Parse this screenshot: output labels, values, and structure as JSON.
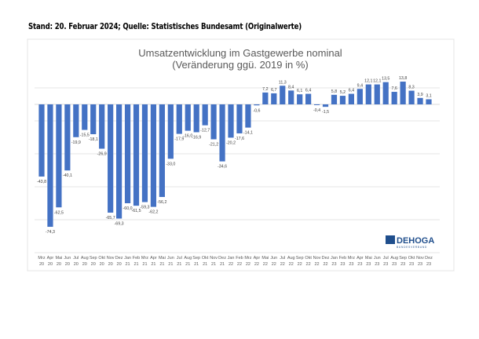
{
  "source_note": "Stand: 20. Februar 2024; Quelle: Statistisches Bundesamt (Originalwerte)",
  "logo": {
    "name": "DEHOGA",
    "sub": "BUNDESVERBAND",
    "color": "#1f4e8c"
  },
  "chart_data": {
    "type": "bar",
    "title_line1": "Umsatzentwicklung im Gastgewerbe nominal",
    "title_line2": "(Veränderung ggü. 2019 in %)",
    "xlabel": "",
    "ylabel": "",
    "bar_color": "#4472c4",
    "grid": true,
    "ylim": [
      -90,
      20
    ],
    "gridlines": [
      10,
      -10,
      -30,
      -50,
      -70,
      -90
    ],
    "categories": [
      [
        "Mrz",
        "20"
      ],
      [
        "Apr",
        "20"
      ],
      [
        "Mai",
        "20"
      ],
      [
        "Jun",
        "20"
      ],
      [
        "Jul",
        "20"
      ],
      [
        "Aug",
        "20"
      ],
      [
        "Sep",
        "20"
      ],
      [
        "Okt",
        "20"
      ],
      [
        "Nov",
        "20"
      ],
      [
        "Dez",
        "20"
      ],
      [
        "Jan",
        "21"
      ],
      [
        "Feb",
        "21"
      ],
      [
        "Mrz",
        "21"
      ],
      [
        "Apr",
        "21"
      ],
      [
        "Mai",
        "21"
      ],
      [
        "Jun",
        "21"
      ],
      [
        "Jul",
        "21"
      ],
      [
        "Aug",
        "21"
      ],
      [
        "Sep",
        "21"
      ],
      [
        "Okt",
        "21"
      ],
      [
        "Nov",
        "21"
      ],
      [
        "Dez",
        "21"
      ],
      [
        "Jan",
        "22"
      ],
      [
        "Feb",
        "22"
      ],
      [
        "Mrz",
        "22"
      ],
      [
        "Apr",
        "22"
      ],
      [
        "Mai",
        "22"
      ],
      [
        "Jun",
        "22"
      ],
      [
        "Jul",
        "22"
      ],
      [
        "Aug",
        "22"
      ],
      [
        "Sep",
        "22"
      ],
      [
        "Okt",
        "22"
      ],
      [
        "Nov",
        "22"
      ],
      [
        "Dez",
        "22"
      ],
      [
        "Jan",
        "23"
      ],
      [
        "Feb",
        "23"
      ],
      [
        "Mrz",
        "23"
      ],
      [
        "Apr",
        "23"
      ],
      [
        "Mai",
        "23"
      ],
      [
        "Jun",
        "23"
      ],
      [
        "Jul",
        "23"
      ],
      [
        "Aug",
        "23"
      ],
      [
        "Sep",
        "23"
      ],
      [
        "Okt",
        "23"
      ],
      [
        "Nov",
        "23"
      ],
      [
        "Dez",
        "23"
      ]
    ],
    "values": [
      -43.8,
      -74.3,
      -62.5,
      -40.1,
      -19.9,
      -15.5,
      -18.1,
      -26.9,
      -65.7,
      -69.3,
      -60.0,
      -61.5,
      -59.3,
      -62.2,
      -56.2,
      -33.0,
      -17.9,
      -16.0,
      -16.9,
      -12.7,
      -21.2,
      -34.6,
      -20.2,
      -17.6,
      -14.1,
      -0.6,
      7.2,
      6.7,
      11.3,
      8.4,
      6.1,
      6.4,
      -0.4,
      -1.5,
      5.8,
      5.2,
      6.4,
      9.4,
      12.1,
      12.1,
      13.5,
      7.6,
      13.8,
      8.3,
      3.9,
      3.1
    ]
  }
}
